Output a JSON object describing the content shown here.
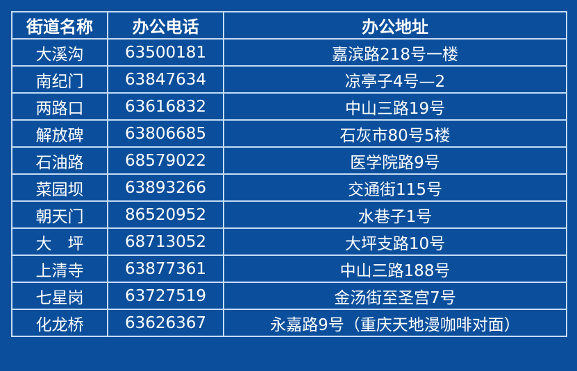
{
  "table": {
    "headers": [
      "街道名称",
      "办公电话",
      "办公地址"
    ],
    "rows": [
      [
        "大溪沟",
        "63500181",
        "嘉滨路218号一楼"
      ],
      [
        "南纪门",
        "63847634",
        "凉亭子4号—2"
      ],
      [
        "两路口",
        "63616832",
        "中山三路19号"
      ],
      [
        "解放碑",
        "63806685",
        "石灰市80号5楼"
      ],
      [
        "石油路",
        "68579022",
        "医学院路9号"
      ],
      [
        "菜园坝",
        "63893266",
        "交通街115号"
      ],
      [
        "朝天门",
        "86520952",
        "水巷子1号"
      ],
      [
        "大　坪",
        "68713052",
        "大坪支路10号"
      ],
      [
        "上清寺",
        "63877361",
        "中山三路188号"
      ],
      [
        "七星岗",
        "63727519",
        "金汤街至圣宫7号"
      ],
      [
        "化龙桥",
        "63626367",
        "永嘉路9号（重庆天地漫咖啡对面）"
      ]
    ]
  },
  "colors": {
    "background": "#0b4f9c",
    "border": "#c4dcf4",
    "text": "#ffffff"
  }
}
